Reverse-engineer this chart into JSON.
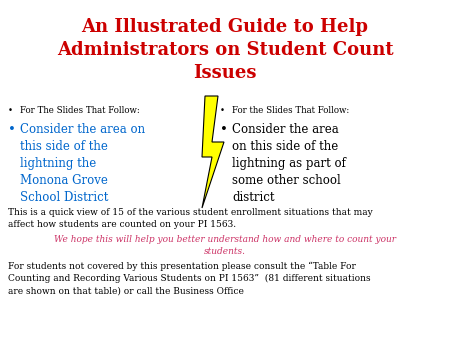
{
  "title": "An Illustrated Guide to Help\nAdministrators on Student Count\nIssues",
  "title_color": "#CC0000",
  "title_fontsize": 13,
  "bg_color": "#ffffff",
  "left_bullet1_small": "For The Slides That Follow:",
  "left_bullet2": "Consider the area on\nthis side of the\nlightning the\nMonona Grove\nSchool District",
  "left_bullet2_color": "#0066CC",
  "right_bullet1_small": "For the Slides That Follow:",
  "right_bullet2": "Consider the area\non this side of the\nlightning as part of\nsome other school\ndistrict",
  "right_bullet2_color": "#000000",
  "bottom_text1": "This is a quick view of 15 of the various student enrollment situations that may\naffect how students are counted on your PI 1563.",
  "bottom_text2": "We hope this will help you better understand how and where to count your\nstudents.",
  "bottom_text2_color": "#CC3366",
  "bottom_text3": "For students not covered by this presentation please consult the “Table For\nCounting and Recording Various Students on PI 1563”  (81 different situations\nare shown on that table) or call the Business Office",
  "lightning_color": "#FFFF00",
  "lightning_outline": "#000000",
  "small_font": 6.2,
  "bullet_font": 8.5,
  "body_font": 6.5
}
